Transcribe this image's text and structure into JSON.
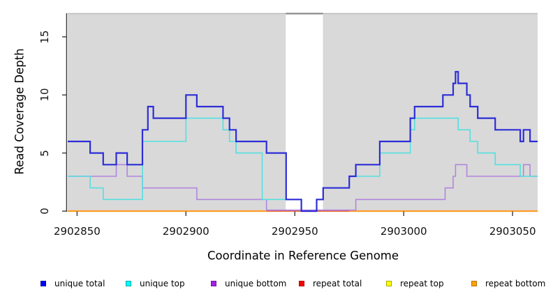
{
  "chart": {
    "ylabel": "Read Coverage Depth",
    "xlabel": "Coordinate in Reference Genome"
  },
  "chart_data": {
    "type": "line",
    "step": true,
    "title": "",
    "xlabel": "Coordinate in Reference Genome",
    "ylabel": "Read Coverage Depth",
    "xlim": [
      2902845.7,
      2903061.5
    ],
    "ylim": [
      0,
      17
    ],
    "xticks": [
      2902850,
      2902900,
      2902950,
      2903000,
      2903050
    ],
    "yticks": [
      0,
      5,
      10,
      15
    ],
    "grid": false,
    "legend_position": "bottom",
    "plot_background": "#d9d9d9",
    "masked_region": {
      "x_start": 2902945.8,
      "x_end": 2902962.9,
      "color": "#ffffff"
    },
    "series": [
      {
        "name": "unique total",
        "line_color": "#2d2dd7",
        "width": 2.2,
        "zero_lift": 0,
        "points": [
          [
            2902845.7,
            6
          ],
          [
            2902856,
            5
          ],
          [
            2902862,
            4
          ],
          [
            2902868,
            5
          ],
          [
            2902873,
            4
          ],
          [
            2902880,
            7
          ],
          [
            2902882.5,
            9
          ],
          [
            2902885,
            8
          ],
          [
            2902900,
            10
          ],
          [
            2902905,
            9
          ],
          [
            2902917,
            8
          ],
          [
            2902920,
            7
          ],
          [
            2902923,
            6
          ],
          [
            2902937,
            5
          ],
          [
            2902946,
            1
          ],
          [
            2902953,
            0
          ],
          [
            2902960,
            1
          ],
          [
            2902963,
            2
          ],
          [
            2902975,
            3
          ],
          [
            2902978,
            4
          ],
          [
            2902989,
            6
          ],
          [
            2903003,
            8
          ],
          [
            2903005,
            9
          ],
          [
            2903018,
            10
          ],
          [
            2903022.7,
            11
          ],
          [
            2903023.8,
            12
          ],
          [
            2903025,
            11
          ],
          [
            2903029,
            10
          ],
          [
            2903030.5,
            9
          ],
          [
            2903034,
            8
          ],
          [
            2903042,
            7
          ],
          [
            2903053.5,
            6
          ],
          [
            2903055,
            7
          ],
          [
            2903058,
            6
          ],
          [
            2903061.5,
            6
          ]
        ]
      },
      {
        "name": "unique top",
        "line_color": "#54dfe0",
        "width": 1.6,
        "zero_lift": 0,
        "points": [
          [
            2902845.7,
            3
          ],
          [
            2902856,
            2
          ],
          [
            2902862,
            1
          ],
          [
            2902880,
            6
          ],
          [
            2902900,
            8
          ],
          [
            2902917,
            7
          ],
          [
            2902920,
            6
          ],
          [
            2902923,
            5
          ],
          [
            2902935,
            1
          ],
          [
            2902953,
            0
          ],
          [
            2902960,
            1
          ],
          [
            2902963,
            2
          ],
          [
            2902975,
            3
          ],
          [
            2902989,
            5
          ],
          [
            2903003,
            7
          ],
          [
            2903005,
            8
          ],
          [
            2903025,
            7
          ],
          [
            2903030.5,
            6
          ],
          [
            2903034,
            5
          ],
          [
            2903042,
            4
          ],
          [
            2903053.5,
            3
          ],
          [
            2903061.5,
            3
          ]
        ]
      },
      {
        "name": "unique bottom",
        "line_color": "#b286de",
        "width": 1.6,
        "zero_lift": 1.4,
        "points": [
          [
            2902845.7,
            3
          ],
          [
            2902868,
            4
          ],
          [
            2902873,
            3
          ],
          [
            2902880,
            2
          ],
          [
            2902905,
            1
          ],
          [
            2902937,
            0
          ],
          [
            2902978,
            1
          ],
          [
            2903019,
            2
          ],
          [
            2903022.7,
            3
          ],
          [
            2903023.8,
            4
          ],
          [
            2903029,
            3
          ],
          [
            2903055,
            4
          ],
          [
            2903058,
            3
          ],
          [
            2903061.5,
            3
          ]
        ]
      },
      {
        "name": "repeat total",
        "line_color": "#d44a5c",
        "width": 1.8,
        "zero_lift": 0.5,
        "points": [
          [
            2902937,
            0
          ],
          [
            2902975,
            0
          ]
        ]
      },
      {
        "name": "repeat top",
        "line_color": "#ffe800",
        "width": 2,
        "zero_lift": 0,
        "points": [
          [
            2902845.7,
            0
          ],
          [
            2903061.5,
            0
          ]
        ]
      },
      {
        "name": "repeat bottom",
        "line_color": "#ff9d26",
        "width": 2.2,
        "zero_lift": 0,
        "points": [
          [
            2902845.7,
            0
          ],
          [
            2903061.5,
            0
          ]
        ]
      }
    ],
    "draw_order": [
      4,
      5,
      3,
      2,
      1,
      0
    ]
  },
  "legend": {
    "items": [
      {
        "label": "unique total",
        "fill": "#0000ff",
        "border": "#0000a8"
      },
      {
        "label": "unique top",
        "fill": "#00ffff",
        "border": "#00a8a8"
      },
      {
        "label": "unique bottom",
        "fill": "#a320e8",
        "border": "#6c18a0"
      },
      {
        "label": "repeat total",
        "fill": "#ff0000",
        "border": "#a80000"
      },
      {
        "label": "repeat top",
        "fill": "#ffff00",
        "border": "#a8a800"
      },
      {
        "label": "repeat bottom",
        "fill": "#ffa200",
        "border": "#b87400"
      }
    ]
  }
}
